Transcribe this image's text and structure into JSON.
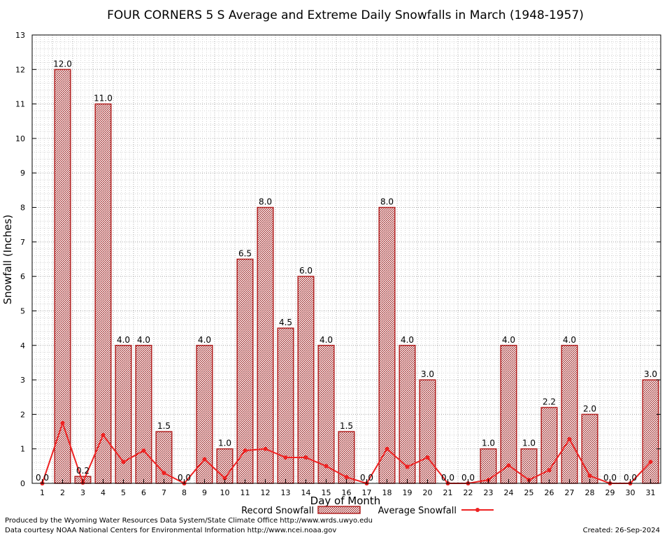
{
  "chart_data": {
    "type": "bar",
    "title": "FOUR CORNERS 5 S Average and Extreme Daily Snowfalls in March (1948-1957)",
    "xlabel": "Day of Month",
    "ylabel": "Snowfall (Inches)",
    "ylim": [
      0,
      13
    ],
    "yticks": [
      "0",
      "1",
      "2",
      "3",
      "4",
      "5",
      "6",
      "7",
      "8",
      "9",
      "10",
      "11",
      "12",
      "13"
    ],
    "categories": [
      "1",
      "2",
      "3",
      "4",
      "5",
      "6",
      "7",
      "8",
      "9",
      "10",
      "11",
      "12",
      "13",
      "14",
      "15",
      "16",
      "17",
      "18",
      "19",
      "20",
      "21",
      "22",
      "23",
      "24",
      "25",
      "26",
      "27",
      "28",
      "29",
      "30",
      "31"
    ],
    "grid": true,
    "legend_position": "bottom-center",
    "series": [
      {
        "name": "Record Snowfall",
        "kind": "bar",
        "color": "#b22222",
        "values": [
          0.0,
          12.0,
          0.2,
          11.0,
          4.0,
          4.0,
          1.5,
          0.0,
          4.0,
          1.0,
          6.5,
          8.0,
          4.5,
          6.0,
          4.0,
          1.5,
          0.0,
          8.0,
          4.0,
          3.0,
          0.0,
          0.0,
          1.0,
          4.0,
          1.0,
          2.2,
          4.0,
          2.0,
          0.0,
          0.0,
          3.0
        ],
        "labels": [
          "0.0",
          "12.0",
          "0.2",
          "11.0",
          "4.0",
          "4.0",
          "1.5",
          "0.0",
          "4.0",
          "1.0",
          "6.5",
          "8.0",
          "4.5",
          "6.0",
          "4.0",
          "1.5",
          "0.0",
          "8.0",
          "4.0",
          "3.0",
          "0.0",
          "0.0",
          "1.0",
          "4.0",
          "1.0",
          "2.2",
          "4.0",
          "2.0",
          "0.0",
          "0.0",
          "3.0"
        ]
      },
      {
        "name": "Average Snowfall",
        "kind": "line",
        "color": "#ee2222",
        "values": [
          0.0,
          1.75,
          0.02,
          1.4,
          0.62,
          0.95,
          0.3,
          0.0,
          0.7,
          0.15,
          0.95,
          1.0,
          0.75,
          0.75,
          0.5,
          0.18,
          0.0,
          1.0,
          0.48,
          0.75,
          0.0,
          0.0,
          0.1,
          0.52,
          0.1,
          0.38,
          1.28,
          0.22,
          0.0,
          0.0,
          0.62
        ]
      }
    ]
  },
  "footer": {
    "produced_by": "Produced by the Wyoming Water Resources Data System/State Climate Office http://www.wrds.uwyo.edu",
    "courtesy": "Data courtesy NOAA National Centers for Environmental Information http://www.ncei.noaa.gov",
    "created": "Created:  26-Sep-2024"
  }
}
